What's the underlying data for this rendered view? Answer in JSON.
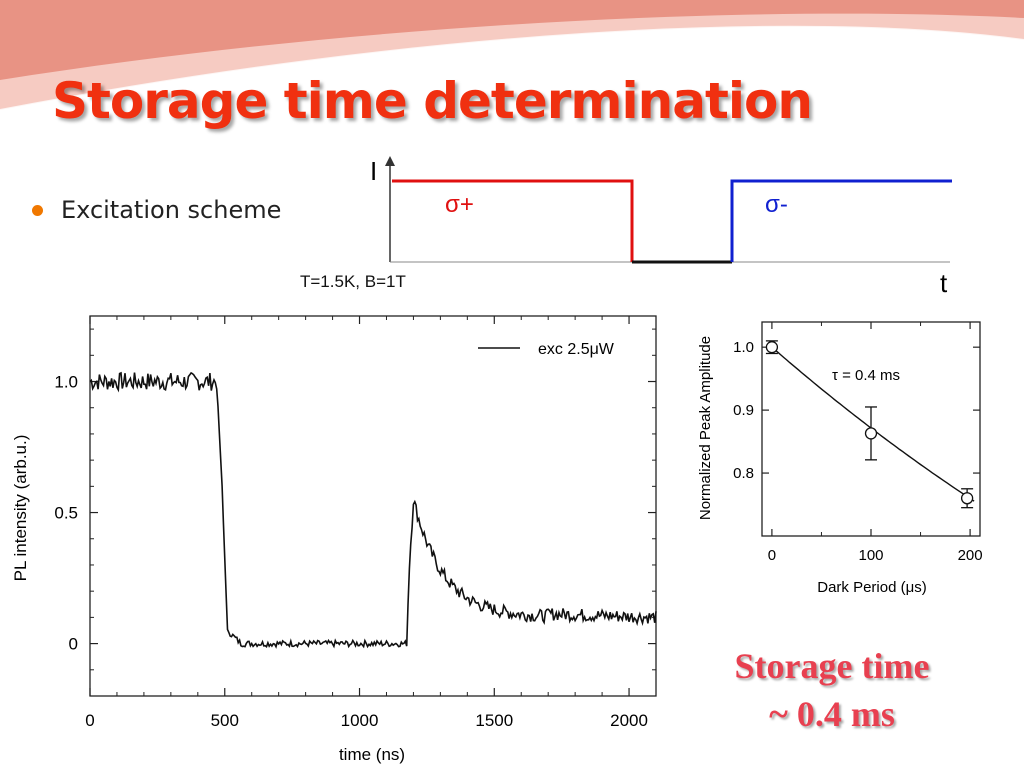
{
  "slide": {
    "title": "Storage time determination",
    "bullet": "Excitation scheme",
    "conditions": "T=1.5K, B=1T",
    "conclusion_line1": "Storage time",
    "conclusion_line2": "~ 0.4 ms"
  },
  "colors": {
    "title": "#f03010",
    "sigma_plus": "#e01010",
    "sigma_minus": "#1020d0",
    "conclusion": "#e84050",
    "bullet": "#f07800"
  },
  "chart_data": [
    {
      "type": "line",
      "name": "excitation-scheme",
      "xlabel": "t",
      "ylabel": "I",
      "segments": [
        {
          "label": "σ+",
          "color": "#e01010",
          "t": [
            0,
            2.4
          ],
          "level": "high"
        },
        {
          "label": "",
          "color": "#111111",
          "t": [
            2.4,
            3.4
          ],
          "level": "zero"
        },
        {
          "label": "σ-",
          "color": "#1020d0",
          "t": [
            3.4,
            5.6
          ],
          "level": "high"
        }
      ]
    },
    {
      "type": "line",
      "name": "pl-transient",
      "xlabel": "time (ns)",
      "ylabel": "PL intensity (arb.u.)",
      "xlim": [
        0,
        2100
      ],
      "ylim": [
        -0.2,
        1.25
      ],
      "xticks": [
        "0",
        "500",
        "1000",
        "1500",
        "2000"
      ],
      "yticks": [
        "0",
        "0.5",
        "1.0"
      ],
      "legend": "exc 2.5μW",
      "legend_position": "top-right",
      "keypoints": {
        "x": [
          0,
          470,
          490,
          510,
          560,
          1175,
          1185,
          1200,
          1300,
          1500,
          2100
        ],
        "y": [
          1.0,
          1.0,
          0.6,
          0.05,
          0.0,
          0.0,
          0.3,
          0.55,
          0.3,
          0.12,
          0.1
        ]
      }
    },
    {
      "type": "scatter",
      "name": "peak-amplitude",
      "xlabel": "Dark Period (μs)",
      "ylabel": "Normalized Peak Amplitude",
      "xlim": [
        -10,
        210
      ],
      "ylim": [
        0.7,
        1.04
      ],
      "xticks": [
        "0",
        "100",
        "200"
      ],
      "yticks": [
        "0.8",
        "0.9",
        "1.0"
      ],
      "annotation": "τ = 0.4 ms",
      "points": [
        {
          "x": 0,
          "y": 1.0,
          "err": 0.01
        },
        {
          "x": 100,
          "y": 0.863,
          "err": 0.042
        },
        {
          "x": 197,
          "y": 0.76,
          "err": 0.015
        }
      ],
      "fit_tau_us": 400
    }
  ]
}
